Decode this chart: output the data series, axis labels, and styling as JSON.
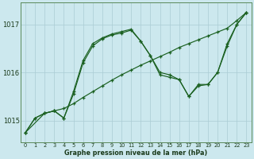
{
  "background_color": "#cce8ee",
  "grid_color": "#aaccd4",
  "line_color": "#1a6020",
  "xlabel": "Graphe pression niveau de la mer (hPa)",
  "xlim": [
    -0.5,
    23.5
  ],
  "ylim": [
    1014.55,
    1017.45
  ],
  "yticks": [
    1015,
    1016,
    1017
  ],
  "xticks": [
    0,
    1,
    2,
    3,
    4,
    5,
    6,
    7,
    8,
    9,
    10,
    11,
    12,
    13,
    14,
    15,
    16,
    17,
    18,
    19,
    20,
    21,
    22,
    23
  ],
  "series1": {
    "x": [
      0,
      1,
      2,
      3,
      4,
      5,
      6,
      7,
      8,
      9,
      10,
      11,
      12,
      13,
      14,
      15,
      16,
      17,
      18,
      19,
      20,
      21,
      22,
      23
    ],
    "y": [
      1014.75,
      1015.05,
      1015.15,
      1015.2,
      1015.25,
      1015.35,
      1015.48,
      1015.6,
      1015.72,
      1015.84,
      1015.95,
      1016.05,
      1016.15,
      1016.24,
      1016.33,
      1016.42,
      1016.52,
      1016.6,
      1016.68,
      1016.76,
      1016.84,
      1016.92,
      1017.08,
      1017.25
    ]
  },
  "series2": {
    "x": [
      0,
      1,
      2,
      3,
      4,
      5,
      6,
      7,
      8,
      9,
      10,
      11,
      12,
      13,
      14,
      15,
      16,
      17,
      18,
      19,
      20,
      21,
      22,
      23
    ],
    "y": [
      1014.75,
      1015.05,
      1015.15,
      1015.2,
      1015.05,
      1015.55,
      1016.2,
      1016.55,
      1016.7,
      1016.78,
      1016.82,
      1016.88,
      1016.65,
      1016.35,
      1016.0,
      1015.95,
      1015.85,
      1015.5,
      1015.75,
      1015.75,
      1016.0,
      1016.6,
      1017.0,
      1017.25
    ]
  },
  "series3": {
    "x": [
      0,
      2,
      3,
      4,
      5,
      6,
      7,
      8,
      9,
      10,
      11,
      12,
      13,
      14,
      15,
      16,
      17,
      18,
      19,
      20,
      21,
      22,
      23
    ],
    "y": [
      1014.75,
      1015.15,
      1015.2,
      1015.05,
      1015.6,
      1016.25,
      1016.6,
      1016.72,
      1016.8,
      1016.85,
      1016.9,
      1016.65,
      1016.35,
      1015.95,
      1015.9,
      1015.85,
      1015.5,
      1015.72,
      1015.75,
      1016.0,
      1016.55,
      1017.0,
      1017.25
    ]
  }
}
